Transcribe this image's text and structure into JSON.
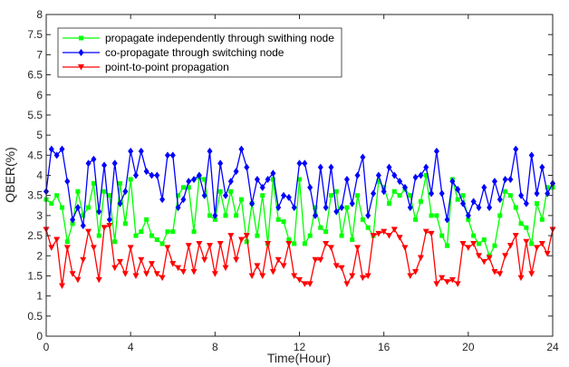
{
  "chart_data": {
    "type": "line",
    "xlabel": "Time(Hour)",
    "ylabel": "QBER(%)",
    "xlim": [
      0,
      24
    ],
    "ylim": [
      0,
      8
    ],
    "xticks": [
      0,
      4,
      8,
      12,
      16,
      20,
      24
    ],
    "yticks": [
      0,
      0.5,
      1,
      1.5,
      2,
      2.5,
      3,
      3.5,
      4,
      4.5,
      5,
      5.5,
      6,
      6.5,
      7,
      7.5,
      8
    ],
    "ytick_labels": [
      "0",
      "0.5",
      "1",
      "1.5",
      "2",
      "2.5",
      "3",
      "3.5",
      "4",
      "4.5",
      "5",
      "5.5",
      "6",
      "6.5",
      "7",
      "7.5",
      "8"
    ],
    "grid": false,
    "legend_position": "top-left",
    "series": [
      {
        "name": "propagate independently through swithing node",
        "color": "#00ff00",
        "marker": "square",
        "x": [
          0,
          0.25,
          0.5,
          0.75,
          1,
          1.25,
          1.5,
          1.75,
          2,
          2.25,
          2.5,
          2.75,
          3,
          3.25,
          3.5,
          3.75,
          4,
          4.25,
          4.5,
          4.75,
          5,
          5.25,
          5.5,
          5.75,
          6,
          6.25,
          6.5,
          6.75,
          7,
          7.25,
          7.5,
          7.75,
          8,
          8.25,
          8.5,
          8.75,
          9,
          9.25,
          9.5,
          9.75,
          10,
          10.25,
          10.5,
          10.75,
          11,
          11.25,
          11.5,
          11.75,
          12,
          12.25,
          12.5,
          12.75,
          13,
          13.25,
          13.5,
          13.75,
          14,
          14.25,
          14.5,
          14.75,
          15,
          15.25,
          15.5,
          15.75,
          16,
          16.25,
          16.5,
          16.75,
          17,
          17.25,
          17.5,
          17.75,
          18,
          18.25,
          18.5,
          18.75,
          19,
          19.25,
          19.5,
          19.75,
          20,
          20.25,
          20.5,
          20.75,
          21,
          21.25,
          21.5,
          21.75,
          22,
          22.25,
          22.5,
          22.75,
          23,
          23.25,
          23.5,
          23.75,
          24
        ],
        "y": [
          3.4,
          3.3,
          3.5,
          3.2,
          2.35,
          2.8,
          3.6,
          3.0,
          3.2,
          3.8,
          2.5,
          3.6,
          3.5,
          2.35,
          3.8,
          2.8,
          3.9,
          2.5,
          2.6,
          2.9,
          2.5,
          2.4,
          2.3,
          2.6,
          2.6,
          3.5,
          3.7,
          3.7,
          2.6,
          3.95,
          3.9,
          3.0,
          2.9,
          3.6,
          3.0,
          3.6,
          3.0,
          3.4,
          2.35,
          3.3,
          2.5,
          3.5,
          2.3,
          3.9,
          2.9,
          2.85,
          2.4,
          2.3,
          3.9,
          2.3,
          2.5,
          3.2,
          2.7,
          2.6,
          3.5,
          3.6,
          2.5,
          3.2,
          2.4,
          3.5,
          2.9,
          2.7,
          2.5,
          3.85,
          3.7,
          3.3,
          3.6,
          3.5,
          3.65,
          3.5,
          2.9,
          3.35,
          4.0,
          3.0,
          3.0,
          2.5,
          2.25,
          3.9,
          3.4,
          3.5,
          2.9,
          2.5,
          2.3,
          2.4,
          2.0,
          2.25,
          3.0,
          3.6,
          3.5,
          3.2,
          2.8,
          2.7,
          2.3,
          3.3,
          2.9,
          3.7,
          3.7
        ]
      },
      {
        "name": "co-propagate through switching node",
        "color": "#0000ff",
        "marker": "diamond",
        "x": [
          0,
          0.25,
          0.5,
          0.75,
          1,
          1.25,
          1.5,
          1.75,
          2,
          2.25,
          2.5,
          2.75,
          3,
          3.25,
          3.5,
          3.75,
          4,
          4.25,
          4.5,
          4.75,
          5,
          5.25,
          5.5,
          5.75,
          6,
          6.25,
          6.5,
          6.75,
          7,
          7.25,
          7.5,
          7.75,
          8,
          8.25,
          8.5,
          8.75,
          9,
          9.25,
          9.5,
          9.75,
          10,
          10.25,
          10.5,
          10.75,
          11,
          11.25,
          11.5,
          11.75,
          12,
          12.25,
          12.5,
          12.75,
          13,
          13.25,
          13.5,
          13.75,
          14,
          14.25,
          14.5,
          14.75,
          15,
          15.25,
          15.5,
          15.75,
          16,
          16.25,
          16.5,
          16.75,
          17,
          17.25,
          17.5,
          17.75,
          18,
          18.25,
          18.5,
          18.75,
          19,
          19.25,
          19.5,
          19.75,
          20,
          20.25,
          20.5,
          20.75,
          21,
          21.25,
          21.5,
          21.75,
          22,
          22.25,
          22.5,
          22.75,
          23,
          23.25,
          23.5,
          23.75,
          24
        ],
        "y": [
          3.6,
          4.65,
          4.5,
          4.65,
          3.85,
          2.9,
          3.2,
          2.75,
          4.3,
          4.4,
          3.1,
          4.25,
          2.9,
          4.3,
          3.3,
          3.6,
          4.6,
          4.0,
          4.6,
          4.1,
          4.0,
          4.0,
          3.4,
          4.5,
          4.5,
          3.2,
          3.4,
          3.85,
          3.9,
          4.0,
          3.5,
          4.6,
          3.0,
          4.3,
          3.5,
          3.85,
          4.1,
          4.65,
          4.2,
          3.3,
          3.9,
          3.7,
          3.9,
          4.05,
          3.2,
          3.5,
          3.45,
          3.2,
          4.3,
          4.3,
          3.7,
          3.0,
          4.2,
          3.2,
          4.2,
          3.1,
          3.2,
          3.9,
          3.3,
          4.0,
          4.45,
          3.0,
          3.55,
          4.0,
          3.6,
          4.2,
          4.0,
          3.85,
          3.7,
          3.2,
          3.95,
          4.0,
          4.2,
          3.55,
          4.6,
          3.55,
          2.9,
          3.85,
          3.65,
          3.3,
          3.0,
          3.35,
          3.2,
          3.7,
          3.2,
          3.85,
          3.4,
          3.9,
          3.9,
          4.65,
          3.5,
          3.3,
          4.5,
          3.55,
          4.2,
          3.55,
          3.8
        ]
      },
      {
        "name": "point-to-point propagation",
        "color": "#ff0000",
        "marker": "triangle-down",
        "x": [
          0,
          0.25,
          0.5,
          0.75,
          1,
          1.25,
          1.5,
          1.75,
          2,
          2.25,
          2.5,
          2.75,
          3,
          3.25,
          3.5,
          3.75,
          4,
          4.25,
          4.5,
          4.75,
          5,
          5.25,
          5.5,
          5.75,
          6,
          6.25,
          6.5,
          6.75,
          7,
          7.25,
          7.5,
          7.75,
          8,
          8.25,
          8.5,
          8.75,
          9,
          9.25,
          9.5,
          9.75,
          10,
          10.25,
          10.5,
          10.75,
          11,
          11.25,
          11.5,
          11.75,
          12,
          12.25,
          12.5,
          12.75,
          13,
          13.25,
          13.5,
          13.75,
          14,
          14.25,
          14.5,
          14.75,
          15,
          15.25,
          15.5,
          15.75,
          16,
          16.25,
          16.5,
          16.75,
          17,
          17.25,
          17.5,
          17.75,
          18,
          18.25,
          18.5,
          18.75,
          19,
          19.25,
          19.5,
          19.75,
          20,
          20.25,
          20.5,
          20.75,
          21,
          21.25,
          21.5,
          21.75,
          22,
          22.25,
          22.5,
          22.75,
          23,
          23.25,
          23.5,
          23.75,
          24
        ],
        "y": [
          2.65,
          2.2,
          2.4,
          1.25,
          2.2,
          1.55,
          1.4,
          1.9,
          2.6,
          2.2,
          1.4,
          2.7,
          2.75,
          1.7,
          1.85,
          1.55,
          2.2,
          1.5,
          1.9,
          1.55,
          1.8,
          1.55,
          1.45,
          2.2,
          1.8,
          1.7,
          1.6,
          2.25,
          1.6,
          2.3,
          1.9,
          2.25,
          1.55,
          2.3,
          1.7,
          2.5,
          1.9,
          2.4,
          2.5,
          1.5,
          1.75,
          1.5,
          2.3,
          1.6,
          1.9,
          1.75,
          2.3,
          1.5,
          1.4,
          1.3,
          1.3,
          1.9,
          1.9,
          2.3,
          2.2,
          1.75,
          1.7,
          1.3,
          1.5,
          2.2,
          1.45,
          1.5,
          2.5,
          2.55,
          2.6,
          2.5,
          2.65,
          2.45,
          2.2,
          1.5,
          1.6,
          1.95,
          2.6,
          2.55,
          1.3,
          1.45,
          1.35,
          1.4,
          1.3,
          2.3,
          2.2,
          2.3,
          2.0,
          1.85,
          1.95,
          1.6,
          1.55,
          2.0,
          2.25,
          2.5,
          1.45,
          2.35,
          1.55,
          2.2,
          2.3,
          2.05,
          2.65
        ]
      }
    ]
  }
}
